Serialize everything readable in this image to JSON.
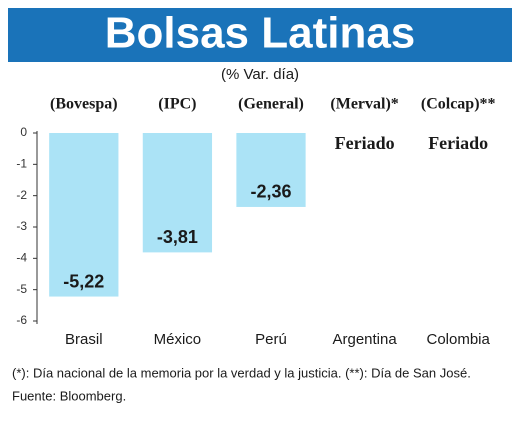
{
  "chart_data": {
    "type": "bar",
    "title": "Bolsas Latinas",
    "subtitle": "(% Var. día)",
    "categories": [
      "Brasil",
      "México",
      "Perú",
      "Argentina",
      "Colombia"
    ],
    "index_labels": [
      "(Bovespa)",
      "(IPC)",
      "(General)",
      "(Merval)*",
      "(Colcap)**"
    ],
    "values": [
      -5.22,
      -3.81,
      -2.36,
      null,
      null
    ],
    "value_labels": [
      "-5,22",
      "-3,81",
      "-2,36",
      "Feriado",
      "Feriado"
    ],
    "color": "#abe3f6",
    "ylim": [
      -6,
      0
    ],
    "yticks": [
      0,
      -1,
      -2,
      -3,
      -4,
      -5,
      -6
    ],
    "notes": [
      "(*):  Día nacional de la memoria por la verdad y la justicia.  (**):  Día de San José.",
      "Fuente: Bloomberg."
    ]
  }
}
